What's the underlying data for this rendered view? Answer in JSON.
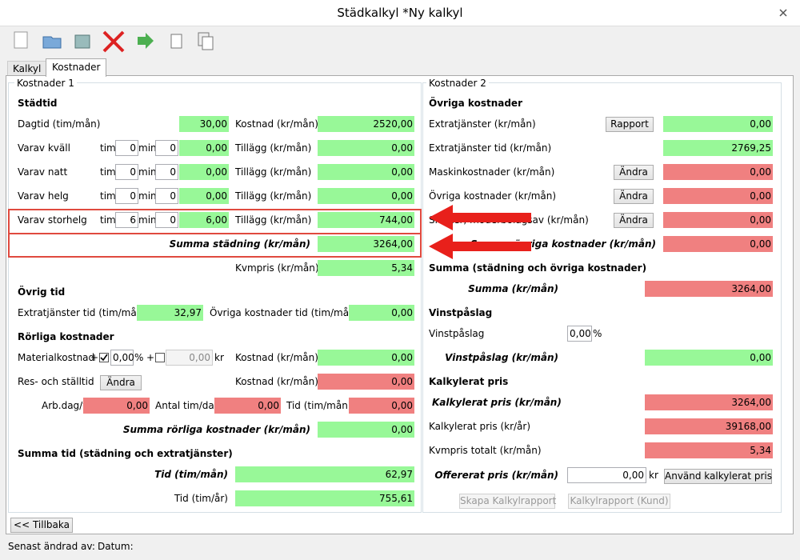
{
  "window": {
    "title": "Städkalkyl *Ny kalkyl"
  },
  "tabs": [
    "Kalkyl",
    "Kostnader"
  ],
  "left": {
    "title": "Kostnader 1",
    "stadtid": {
      "heading": "Städtid",
      "dagtid": {
        "label": "Dagtid (tim/mån)",
        "value": "30,00",
        "cost_label": "Kostnad (kr/mån)",
        "cost": "2520,00"
      },
      "rows": [
        {
          "label": "Varav kväll",
          "tim_label": "tim",
          "tim": "0",
          "min_label": "min",
          "min": "0",
          "value": "0,00",
          "add_label": "Tillägg (kr/mån)",
          "add": "0,00"
        },
        {
          "label": "Varav natt",
          "tim_label": "tim",
          "tim": "0",
          "min_label": "min",
          "min": "0",
          "value": "0,00",
          "add_label": "Tillägg (kr/mån)",
          "add": "0,00"
        },
        {
          "label": "Varav helg",
          "tim_label": "tim",
          "tim": "0",
          "min_label": "min",
          "min": "0",
          "value": "0,00",
          "add_label": "Tillägg (kr/mån)",
          "add": "0,00"
        },
        {
          "label": "Varav storhelg",
          "tim_label": "tim",
          "tim": "6",
          "min_label": "min",
          "min": "0",
          "value": "6,00",
          "add_label": "Tillägg (kr/mån)",
          "add": "744,00"
        }
      ],
      "summa": {
        "label": "Summa städning (kr/mån)",
        "value": "3264,00"
      },
      "kvmpris": {
        "label": "Kvmpris (kr/mån)",
        "value": "5,34"
      }
    },
    "ovrig_tid": {
      "heading": "Övrig tid",
      "extra_label": "Extratjänster tid (tim/mån)",
      "extra": "32,97",
      "other_label": "Övriga kostnader tid (tim/mån)",
      "other": "0,00"
    },
    "rorliga": {
      "heading": "Rörliga kostnader",
      "material": {
        "label": "Materialkostnad",
        "plus1": "+",
        "percent": "0,00",
        "percent_sign": "%",
        "plus2": "+",
        "kr_value": "0,00",
        "kr_sign": "kr",
        "cost_label": "Kostnad (kr/mån)",
        "cost": "0,00"
      },
      "res": {
        "label": "Res- och ställtid",
        "button": "Ändra",
        "cost_label": "Kostnad (kr/mån)",
        "cost": "0,00"
      },
      "arb": {
        "label": "Arb.dag/v",
        "value": "0,00",
        "tim_dag_label": "Antal tim/dag",
        "tim_dag": "0,00",
        "tid_label": "Tid (tim/mån)",
        "tid": "0,00"
      },
      "summa": {
        "label": "Summa rörliga kostnader (kr/mån)",
        "value": "0,00"
      }
    },
    "summa_tid": {
      "heading": "Summa tid (städning och extratjänster)",
      "month_label": "Tid (tim/mån)",
      "month": "62,97",
      "year_label": "Tid (tim/år)",
      "year": "755,61"
    }
  },
  "right": {
    "title": "Kostnader 2",
    "ovriga": {
      "heading": "Övriga kostnader",
      "rows": [
        {
          "label": "Extratjänster (kr/mån)",
          "button": "Rapport",
          "value": "0,00"
        },
        {
          "label": "Extratjänster tid (kr/mån)",
          "value": "2769,25"
        },
        {
          "label": "Maskinkostnader (kr/mån)",
          "button": "Ändra",
          "value": "0,00"
        },
        {
          "label": "Övriga kostnader (kr/mån)",
          "button": "Ändra",
          "value": "0,00"
        },
        {
          "label": "Skatter, moderbolagsav (kr/mån)",
          "button": "Ändra",
          "value": "0,00"
        }
      ],
      "summa": {
        "label": "Summa övriga kostnader (kr/mån)",
        "value": "0,00"
      }
    },
    "summa": {
      "heading": "Summa (städning och övriga kostnader)",
      "label": "Summa (kr/mån)",
      "value": "3264,00"
    },
    "vinst": {
      "heading": "Vinstpåslag",
      "label": "Vinstpåslag",
      "percent": "0,00",
      "percent_sign": "%",
      "sum_label": "Vinstpåslag (kr/mån)",
      "sum": "0,00"
    },
    "kalkyl": {
      "heading": "Kalkylerat pris",
      "rows": [
        {
          "label": "Kalkylerat pris (kr/mån)",
          "value": "3264,00"
        },
        {
          "label": "Kalkylerat pris (kr/år)",
          "value": "39168,00"
        },
        {
          "label": "Kvmpris totalt (kr/mån)",
          "value": "5,34"
        }
      ],
      "offer": {
        "label": "Offererat pris (kr/mån)",
        "value": "0,00",
        "unit": "kr",
        "button": "Använd kalkylerat pris"
      },
      "buttons": [
        "Skapa Kalkylrapport",
        "Kalkylrapport (Kund)"
      ]
    }
  },
  "footer": {
    "back_button": "<< Tillbaka",
    "changed_by": "Senast ändrad av:",
    "date": "Datum:"
  }
}
